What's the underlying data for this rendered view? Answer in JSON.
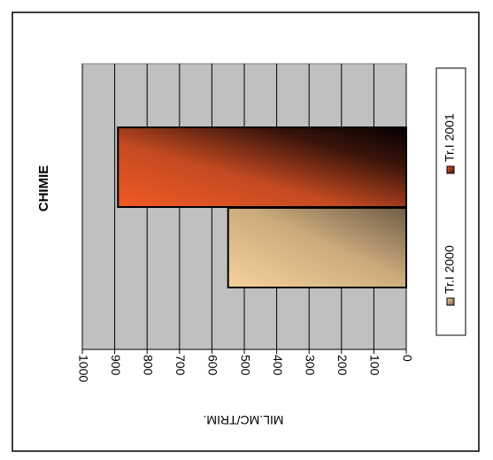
{
  "chart_data": {
    "type": "bar",
    "orientation": "rotated-90",
    "title": "CHIMIE",
    "ylabel": "MIL.MC/TRIM.",
    "xlabel": "",
    "ylim": [
      0,
      1000
    ],
    "yticks": [
      0,
      100,
      200,
      300,
      400,
      500,
      600,
      700,
      800,
      900,
      1000
    ],
    "ytick_labels": [
      "0",
      "100",
      "200",
      "300",
      "400",
      "500",
      "600",
      "700",
      "800",
      "900",
      "1000"
    ],
    "grid": true,
    "legend_position": "right",
    "series": [
      {
        "name": "Tr.I 2000",
        "values": [
          550
        ],
        "color": "#c9a878"
      },
      {
        "name": "Tr.I 2001",
        "values": [
          890
        ],
        "color": "#e8552a"
      }
    ]
  }
}
